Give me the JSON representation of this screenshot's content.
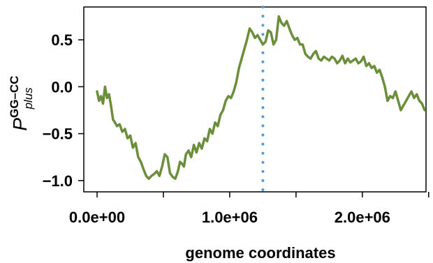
{
  "chart_data": {
    "type": "line",
    "xlabel": "genome coordinates",
    "ylabel": {
      "main": "P",
      "superscript": "GG–CC",
      "subscript": "plus"
    },
    "xlim": [
      -100000,
      2480000
    ],
    "ylim": [
      -1.12,
      0.85
    ],
    "x_ticks": [
      0,
      500000,
      1000000,
      1500000,
      2000000,
      2500000
    ],
    "x_tick_labels": [
      "0.0e+00",
      "",
      "1.0e+06",
      "",
      "2.0e+06",
      ""
    ],
    "y_ticks": [
      -1.0,
      -0.5,
      0.0,
      0.5
    ],
    "y_tick_labels": [
      "−1.0",
      "−0.5",
      "0.0",
      "0.5"
    ],
    "grid": false,
    "vline": {
      "x": 1250000,
      "style": "dotted",
      "color": "#5b9bd5"
    },
    "series": [
      {
        "color": "#6b8e3a",
        "x": [
          0,
          15000,
          30000,
          45000,
          60000,
          75000,
          90000,
          105000,
          120000,
          135000,
          150000,
          170000,
          190000,
          210000,
          230000,
          250000,
          270000,
          290000,
          310000,
          330000,
          350000,
          370000,
          390000,
          410000,
          430000,
          450000,
          470000,
          490000,
          510000,
          530000,
          550000,
          570000,
          590000,
          610000,
          625000,
          640000,
          655000,
          670000,
          690000,
          710000,
          730000,
          750000,
          770000,
          790000,
          810000,
          830000,
          850000,
          870000,
          890000,
          910000,
          930000,
          950000,
          970000,
          990000,
          1010000,
          1030000,
          1050000,
          1070000,
          1090000,
          1110000,
          1130000,
          1150000,
          1170000,
          1190000,
          1210000,
          1230000,
          1250000,
          1270000,
          1290000,
          1310000,
          1330000,
          1350000,
          1370000,
          1390000,
          1410000,
          1430000,
          1450000,
          1470000,
          1490000,
          1510000,
          1530000,
          1550000,
          1570000,
          1590000,
          1610000,
          1630000,
          1650000,
          1670000,
          1690000,
          1710000,
          1730000,
          1750000,
          1770000,
          1790000,
          1810000,
          1830000,
          1850000,
          1870000,
          1890000,
          1910000,
          1930000,
          1950000,
          1970000,
          1990000,
          2010000,
          2030000,
          2050000,
          2070000,
          2090000,
          2110000,
          2130000,
          2150000,
          2170000,
          2190000,
          2210000,
          2230000,
          2250000,
          2270000,
          2290000,
          2310000,
          2330000,
          2350000,
          2370000,
          2390000,
          2410000,
          2430000,
          2450000,
          2470000
        ],
        "values": [
          -0.05,
          -0.15,
          -0.1,
          -0.18,
          0.0,
          -0.12,
          -0.08,
          -0.2,
          -0.35,
          -0.38,
          -0.42,
          -0.4,
          -0.48,
          -0.45,
          -0.55,
          -0.52,
          -0.65,
          -0.6,
          -0.75,
          -0.8,
          -0.88,
          -0.95,
          -0.98,
          -0.95,
          -0.93,
          -0.9,
          -0.95,
          -0.85,
          -0.72,
          -0.75,
          -0.92,
          -0.96,
          -0.98,
          -0.9,
          -0.8,
          -0.82,
          -0.85,
          -0.72,
          -0.68,
          -0.75,
          -0.62,
          -0.7,
          -0.6,
          -0.66,
          -0.55,
          -0.58,
          -0.45,
          -0.5,
          -0.38,
          -0.42,
          -0.3,
          -0.25,
          -0.15,
          -0.1,
          -0.12,
          -0.05,
          0.05,
          0.2,
          0.3,
          0.4,
          0.5,
          0.62,
          0.58,
          0.52,
          0.55,
          0.5,
          0.45,
          0.48,
          0.6,
          0.58,
          0.45,
          0.5,
          0.75,
          0.68,
          0.65,
          0.7,
          0.62,
          0.55,
          0.5,
          0.52,
          0.45,
          0.45,
          0.35,
          0.32,
          0.3,
          0.35,
          0.38,
          0.3,
          0.28,
          0.32,
          0.3,
          0.28,
          0.32,
          0.3,
          0.25,
          0.28,
          0.33,
          0.25,
          0.3,
          0.26,
          0.28,
          0.3,
          0.25,
          0.27,
          0.32,
          0.22,
          0.25,
          0.2,
          0.22,
          0.15,
          0.18,
          0.1,
          0.0,
          -0.15,
          -0.1,
          -0.12,
          -0.05,
          -0.15,
          -0.25,
          -0.2,
          -0.15,
          -0.1,
          -0.05,
          -0.12,
          -0.08,
          -0.15,
          -0.18,
          -0.25
        ]
      }
    ]
  },
  "colors": {
    "axis": "#000000",
    "background": "#ffffff"
  }
}
